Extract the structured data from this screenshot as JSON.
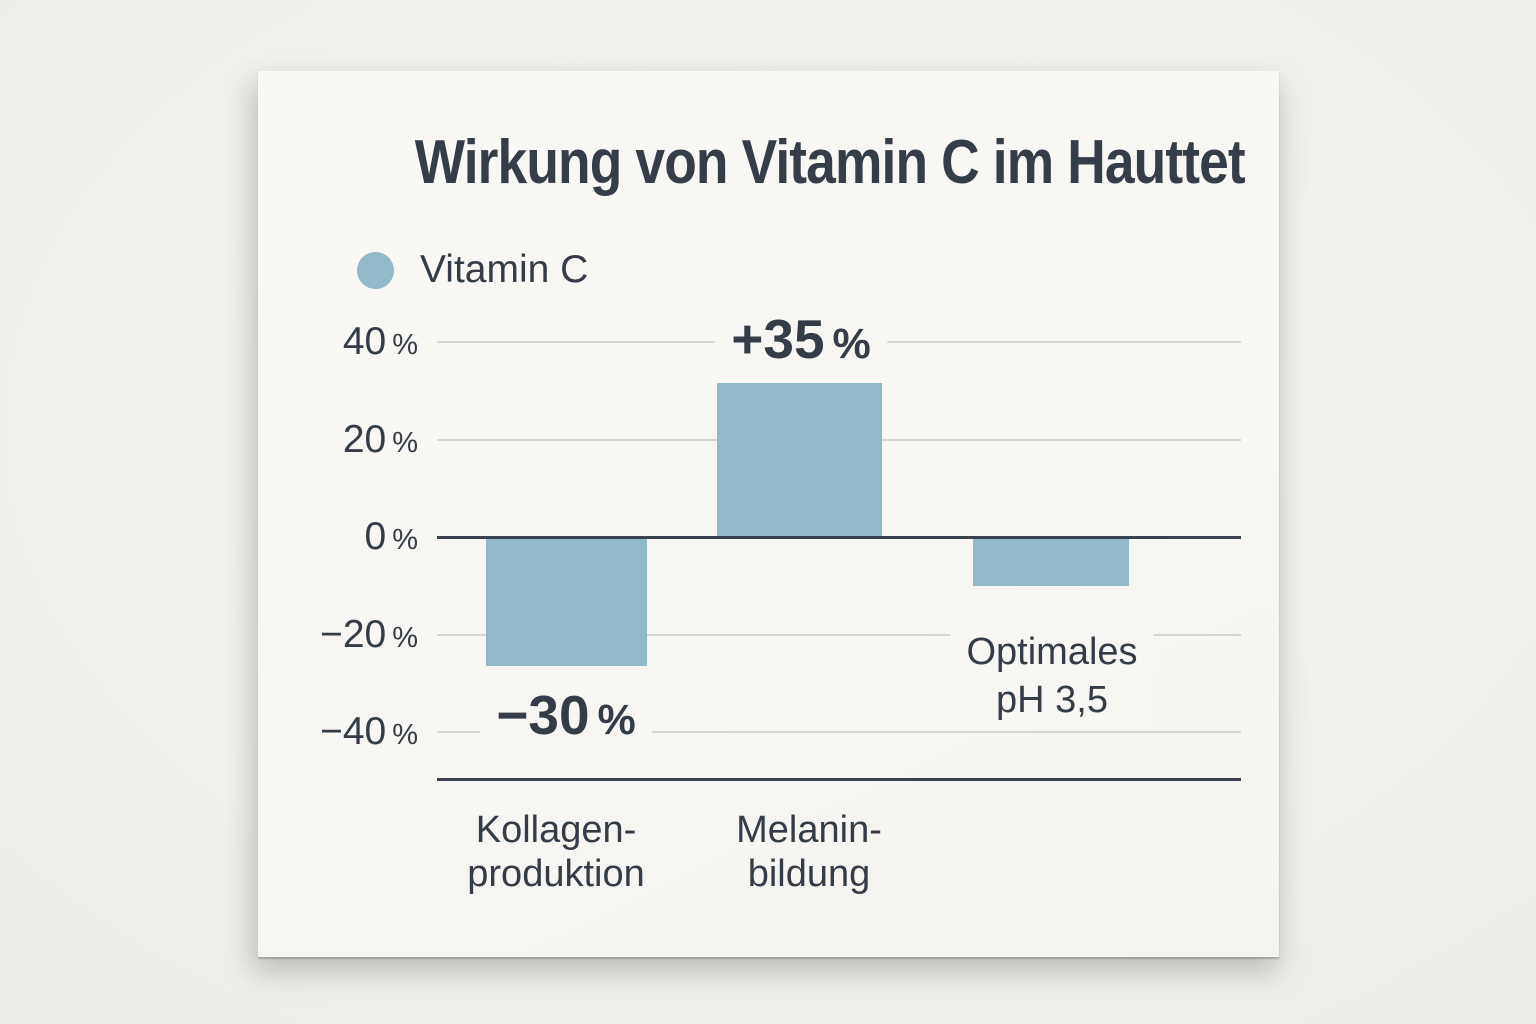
{
  "chart_data": {
    "type": "bar",
    "title": "Wirkung von Vitamin C im Hauttet",
    "legend": [
      {
        "label": "Vitamin C",
        "color": "#92b9c8"
      }
    ],
    "legend_position": "top-left",
    "categories": [
      "Kollagenproduktion",
      "Melaninbildung",
      "Optimales pH 3,5"
    ],
    "series": [
      {
        "name": "Vitamin C",
        "values": [
          -30,
          35,
          -10
        ]
      }
    ],
    "drawn_values": [
      -26.5,
      31.6,
      -10
    ],
    "yticks": [
      40,
      20,
      0,
      -20,
      -40
    ],
    "ytick_labels": [
      "40",
      "20",
      "0",
      "−20",
      "−40"
    ],
    "y_unit": "%",
    "ylim": [
      -49,
      45
    ],
    "grid": true,
    "x_axis_labels": [
      [
        "Kollagen-",
        "produktion"
      ],
      [
        "Melanin-",
        "bildung"
      ],
      []
    ],
    "annotations": [
      {
        "type": "value",
        "category_index": 0,
        "position": "below-bar",
        "text_lines": [
          "−30 %"
        ]
      },
      {
        "type": "value",
        "category_index": 1,
        "position": "above-bar",
        "text_lines": [
          "+35 %"
        ]
      },
      {
        "type": "note",
        "category_index": 2,
        "position": "below-bar",
        "text_lines": [
          "Optimales",
          "pH 3,5"
        ]
      }
    ],
    "colors": {
      "bar": "#92b9c8",
      "grid": "#d7d6d1",
      "axis": "#38414d",
      "text": "#343c48",
      "card": "#f7f6f2",
      "background": "#f0efeb"
    }
  }
}
